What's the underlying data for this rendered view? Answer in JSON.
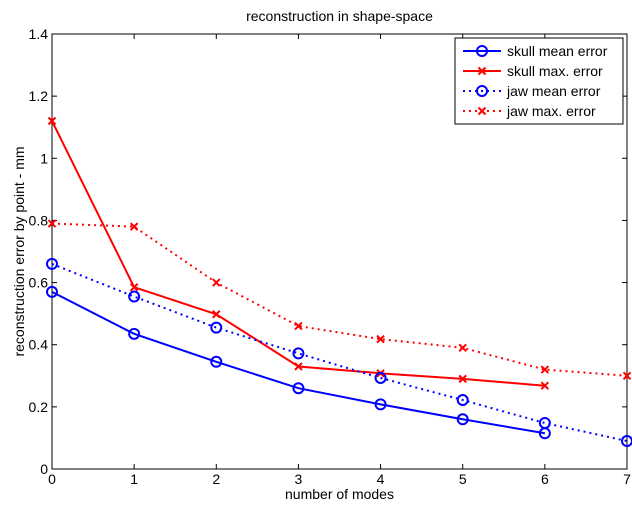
{
  "chart_data": {
    "type": "line",
    "title": "reconstruction in shape-space",
    "xlabel": "number of modes",
    "ylabel": "reconstruction error by point - mm",
    "xlim": [
      0,
      7
    ],
    "ylim": [
      0,
      1.4
    ],
    "xticks": [
      0,
      1,
      2,
      3,
      4,
      5,
      6,
      7
    ],
    "yticks": [
      0,
      0.2,
      0.4,
      0.6,
      0.8,
      1,
      1.2,
      1.4
    ],
    "xtick_labels": [
      "0",
      "1",
      "2",
      "3",
      "4",
      "5",
      "6",
      "7"
    ],
    "ytick_labels": [
      "0",
      "0.2",
      "0.4",
      "0.6",
      "0.8",
      "1",
      "1.2",
      "1.4"
    ],
    "grid": false,
    "legend_position": "top-right",
    "series": [
      {
        "name": "skull mean error",
        "color": "#0000ff",
        "line": "solid",
        "marker": "circle",
        "x": [
          0,
          1,
          2,
          3,
          4,
          5,
          6
        ],
        "y": [
          0.57,
          0.435,
          0.345,
          0.26,
          0.208,
          0.16,
          0.115
        ]
      },
      {
        "name": "skull max. error",
        "color": "#ff0000",
        "line": "solid",
        "marker": "x",
        "x": [
          0,
          1,
          2,
          3,
          4,
          5,
          6
        ],
        "y": [
          1.12,
          0.585,
          0.498,
          0.33,
          0.308,
          0.29,
          0.268
        ]
      },
      {
        "name": "jaw mean error",
        "color": "#0000ff",
        "line": "dotted",
        "marker": "circle",
        "x": [
          0,
          1,
          2,
          3,
          4,
          5,
          6,
          7
        ],
        "y": [
          0.66,
          0.555,
          0.455,
          0.372,
          0.293,
          0.222,
          0.148,
          0.09
        ]
      },
      {
        "name": "jaw max. error",
        "color": "#ff0000",
        "line": "dotted",
        "marker": "x",
        "x": [
          0,
          1,
          2,
          3,
          4,
          5,
          6,
          7
        ],
        "y": [
          0.79,
          0.78,
          0.6,
          0.46,
          0.418,
          0.39,
          0.32,
          0.3
        ]
      }
    ]
  }
}
